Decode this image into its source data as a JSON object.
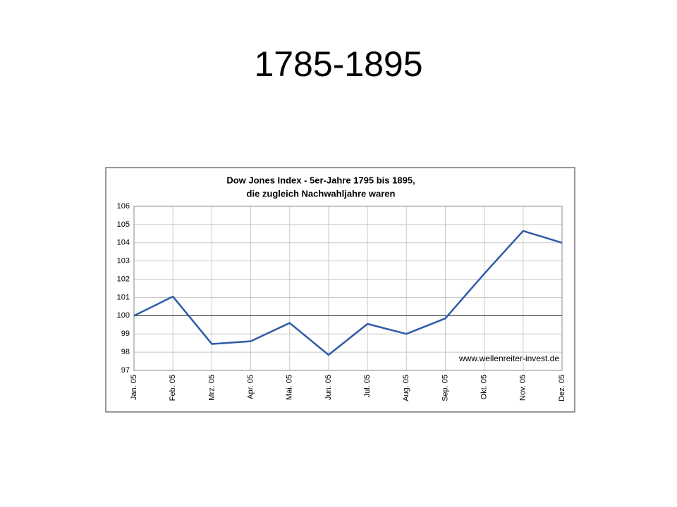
{
  "slide_title": "1785-1895",
  "chart_data": {
    "type": "line",
    "title": "Dow Jones Index - 5er-Jahre 1795 bis 1895,",
    "subtitle": "die zugleich Nachwahljahre waren",
    "annotation": "www.wellenreiter-invest.de",
    "categories": [
      "Jan. 05",
      "Feb. 05",
      "Mrz. 05",
      "Apr. 05",
      "Mai. 05",
      "Jun. 05",
      "Jul. 05",
      "Aug. 05",
      "Sep. 05",
      "Okt. 05",
      "Nov. 05",
      "Dez. 05"
    ],
    "values": [
      100,
      101.05,
      98.45,
      98.6,
      99.6,
      97.85,
      99.55,
      99.0,
      99.85,
      102.3,
      104.65,
      104.0
    ],
    "color": "#2f5ca8",
    "ylim": [
      97,
      106
    ],
    "yticks": [
      97,
      98,
      99,
      100,
      101,
      102,
      103,
      104,
      105,
      106
    ],
    "reference_line": 100,
    "grid": true
  }
}
